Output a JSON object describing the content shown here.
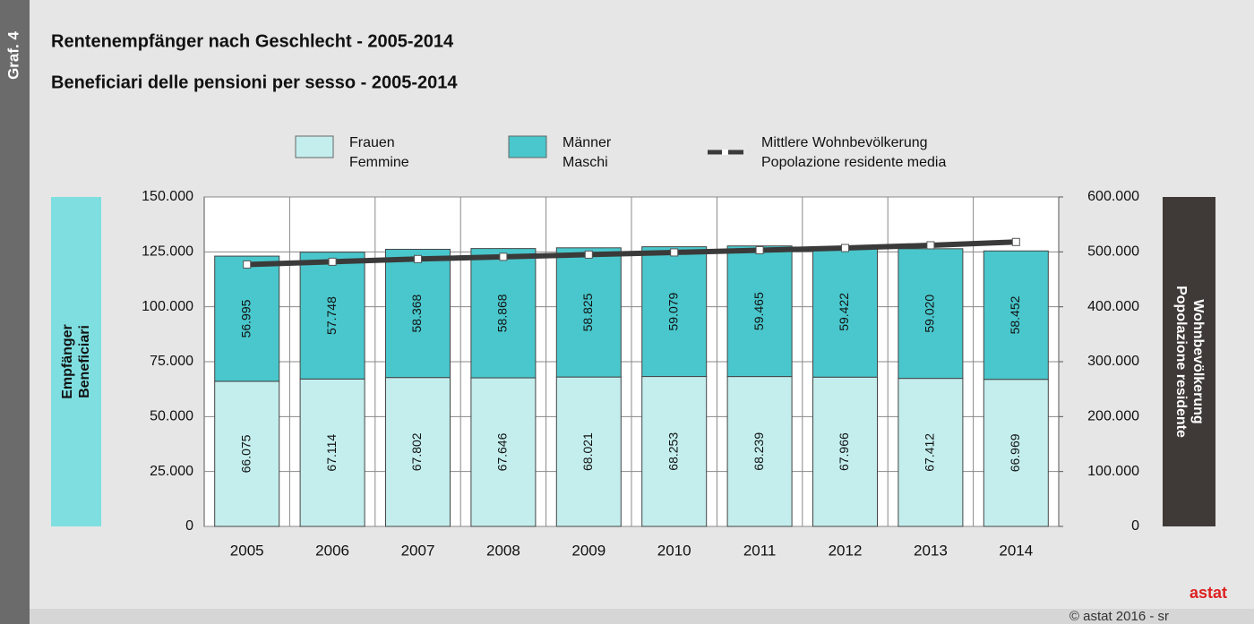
{
  "side_label": "Graf. 4",
  "chart_data": {
    "type": "stacked_bar_line",
    "title": "Rentenempfänger nach Geschlecht - 2005-2014",
    "subtitle": "Beneficiari delle pensioni per sesso - 2005-2014",
    "y_label": [
      "Empfänger",
      "Beneficiari"
    ],
    "y2_label": [
      "Wohnbevölkerung",
      "Popolazione residente"
    ],
    "categories": [
      "2005",
      "2006",
      "2007",
      "2008",
      "2009",
      "2010",
      "2011",
      "2012",
      "2013",
      "2014"
    ],
    "series": [
      {
        "name": "Frauen",
        "name2": "Femmine",
        "color": "#c4eeee",
        "values": [
          66075,
          67114,
          67802,
          67646,
          68021,
          68253,
          68239,
          67966,
          67412,
          66969
        ],
        "value_labels": [
          "66.075",
          "67.114",
          "67.802",
          "67.646",
          "68.021",
          "68.253",
          "68.239",
          "67.966",
          "67.412",
          "66.969"
        ]
      },
      {
        "name": "Männer",
        "name2": "Maschi",
        "color": "#49c7cc",
        "values": [
          56995,
          57748,
          58368,
          58868,
          58825,
          59079,
          59465,
          59422,
          59020,
          58452
        ],
        "value_labels": [
          "56.995",
          "57.748",
          "58.368",
          "58.868",
          "58.825",
          "59.079",
          "59.465",
          "59.422",
          "59.020",
          "58.452"
        ]
      },
      {
        "name": "Mittlere Wohnbevölkerung",
        "name2": "Popolazione residente media",
        "color": "#3a3a3a",
        "axis": "y2",
        "values": [
          477000,
          482000,
          487000,
          491000,
          495000,
          499000,
          503000,
          507000,
          512000,
          518000
        ]
      }
    ],
    "ylim": [
      0,
      150000
    ],
    "yticks": [
      0,
      {
        "value": 25000,
        "label": "25.000"
      },
      {
        "value": 50000,
        "label": "50.000"
      },
      {
        "value": 75000,
        "label": "75.000"
      },
      {
        "value": 100000,
        "label": "100.000"
      },
      {
        "value": 125000,
        "label": "125.000"
      },
      {
        "value": 150000,
        "label": "150.000"
      }
    ],
    "y2lim": [
      0,
      600000
    ],
    "y2ticks": [
      0,
      {
        "value": 100000,
        "label": "100.000"
      },
      {
        "value": 200000,
        "label": "200.000"
      },
      {
        "value": 300000,
        "label": "300.000"
      },
      {
        "value": 400000,
        "label": "400.000"
      },
      {
        "value": 500000,
        "label": "500.000"
      },
      {
        "value": 600000,
        "label": "600.000"
      }
    ],
    "grid": true,
    "footer": "© astat 2016 - sr",
    "logo": "astat"
  }
}
